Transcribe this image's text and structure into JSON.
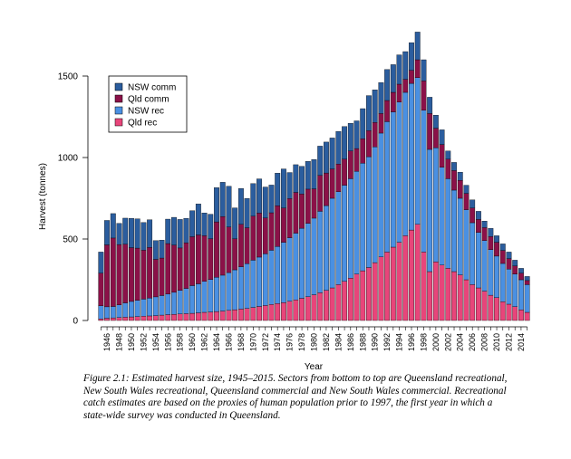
{
  "chart_data": {
    "type": "bar",
    "stacked": true,
    "title": "",
    "xlabel": "Year",
    "ylabel": "Harvest (tonnes)",
    "ylim": [
      0,
      1800
    ],
    "yticks": [
      0,
      500,
      1000,
      1500
    ],
    "grid": false,
    "legend_position": "top-left",
    "x": [
      1945,
      1946,
      1947,
      1948,
      1949,
      1950,
      1951,
      1952,
      1953,
      1954,
      1955,
      1956,
      1957,
      1958,
      1959,
      1960,
      1961,
      1962,
      1963,
      1964,
      1965,
      1966,
      1967,
      1968,
      1969,
      1970,
      1971,
      1972,
      1973,
      1974,
      1975,
      1976,
      1977,
      1978,
      1979,
      1980,
      1981,
      1982,
      1983,
      1984,
      1985,
      1986,
      1987,
      1988,
      1989,
      1990,
      1991,
      1992,
      1993,
      1994,
      1995,
      1996,
      1997,
      1998,
      1999,
      2000,
      2001,
      2002,
      2003,
      2004,
      2005,
      2006,
      2007,
      2008,
      2009,
      2010,
      2011,
      2012,
      2013,
      2014,
      2015
    ],
    "xtick_labels": [
      "1946",
      "1948",
      "1950",
      "1952",
      "1954",
      "1956",
      "1958",
      "1960",
      "1962",
      "1964",
      "1966",
      "1968",
      "1970",
      "1972",
      "1974",
      "1976",
      "1978",
      "1980",
      "1982",
      "1984",
      "1986",
      "1988",
      "1990",
      "1992",
      "1994",
      "1996",
      "1998",
      "2000",
      "2002",
      "2004",
      "2006",
      "2008",
      "2010",
      "2012",
      "2014"
    ],
    "series": [
      {
        "name": "Qld rec",
        "color": "#e8457a",
        "values": [
          10,
          14,
          16,
          18,
          20,
          22,
          24,
          26,
          28,
          30,
          33,
          36,
          38,
          40,
          42,
          44,
          47,
          50,
          52,
          55,
          58,
          62,
          66,
          70,
          74,
          80,
          86,
          92,
          98,
          104,
          110,
          118,
          126,
          136,
          146,
          158,
          170,
          185,
          200,
          220,
          240,
          260,
          285,
          305,
          325,
          355,
          390,
          420,
          450,
          480,
          520,
          555,
          590,
          420,
          300,
          360,
          340,
          320,
          300,
          280,
          250,
          220,
          200,
          180,
          155,
          140,
          115,
          100,
          85,
          65,
          50
        ]
      },
      {
        "name": "NSW rec",
        "color": "#4a90e2",
        "values": [
          80,
          70,
          70,
          78,
          88,
          95,
          100,
          105,
          110,
          115,
          120,
          126,
          135,
          145,
          155,
          170,
          178,
          190,
          200,
          210,
          220,
          232,
          245,
          260,
          275,
          290,
          303,
          317,
          333,
          350,
          370,
          390,
          410,
          430,
          450,
          470,
          500,
          520,
          550,
          570,
          590,
          610,
          630,
          660,
          680,
          710,
          760,
          800,
          830,
          860,
          880,
          900,
          900,
          870,
          750,
          700,
          600,
          550,
          500,
          470,
          430,
          380,
          340,
          310,
          280,
          255,
          235,
          215,
          200,
          185,
          170
        ]
      },
      {
        "name": "Qld comm",
        "color": "#8b1148",
        "values": [
          200,
          380,
          420,
          370,
          360,
          330,
          320,
          300,
          310,
          230,
          230,
          310,
          290,
          260,
          280,
          300,
          300,
          280,
          250,
          340,
          360,
          280,
          190,
          260,
          220,
          270,
          270,
          220,
          230,
          250,
          210,
          240,
          250,
          210,
          210,
          180,
          220,
          200,
          180,
          170,
          160,
          170,
          140,
          150,
          160,
          150,
          120,
          130,
          120,
          110,
          80,
          80,
          110,
          180,
          220,
          120,
          140,
          120,
          120,
          110,
          100,
          90,
          80,
          80,
          80,
          85,
          80,
          65,
          50,
          40,
          25
        ]
      },
      {
        "name": "NSW comm",
        "color": "#2b5d9e",
        "values": [
          130,
          150,
          150,
          130,
          160,
          180,
          180,
          170,
          170,
          115,
          110,
          150,
          170,
          175,
          150,
          160,
          190,
          140,
          150,
          210,
          210,
          250,
          190,
          220,
          180,
          200,
          210,
          190,
          170,
          200,
          240,
          160,
          170,
          170,
          170,
          180,
          180,
          190,
          190,
          200,
          200,
          170,
          170,
          185,
          215,
          200,
          190,
          190,
          170,
          180,
          170,
          170,
          170,
          130,
          100,
          80,
          90,
          50,
          50,
          50,
          50,
          50,
          50,
          40,
          50,
          40,
          40,
          40,
          35,
          30,
          25
        ]
      }
    ]
  },
  "caption": "Figure 2.1: Estimated harvest size, 1945–2015.  Sectors from bottom to top are Queensland recreational, New South Wales recreational, Queensland commercial and New South Wales commercial.  Recreational catch estimates are based on the proxies of human population prior to 1997, the first year in which a state-wide survey was conducted in Queensland."
}
